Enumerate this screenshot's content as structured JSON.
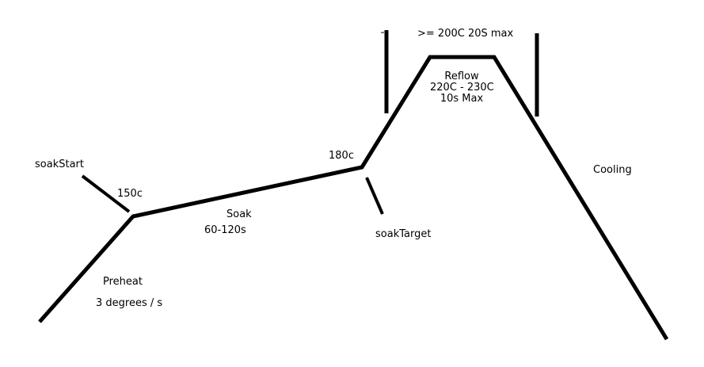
{
  "labels": {
    "soak_start": "soakStart",
    "temp_150": "150c",
    "soak": "Soak",
    "soak_time": "60-120s",
    "temp_180": "180c",
    "soak_target": "soakTarget",
    "peak_limit": ">= 200C 20S max",
    "reflow": "Reflow",
    "reflow_temp": "220C - 230C",
    "reflow_time": "10s Max",
    "cooling": "Cooling",
    "preheat": "Preheat",
    "preheat_rate": "3 degrees / s"
  },
  "colors": {
    "stroke": "#000000",
    "background": "#ffffff"
  }
}
